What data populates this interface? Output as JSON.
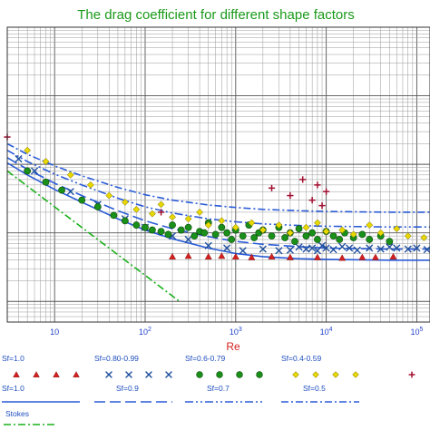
{
  "chart_data": {
    "type": "scatter",
    "title": "The drag coefficient for different shape factors",
    "xlabel": "Re",
    "ylabel": "",
    "x_scale": "log",
    "y_scale": "log",
    "xlim": [
      3,
      140000
    ],
    "ylim": [
      0.05,
      1000
    ],
    "grid": true,
    "x_tick_labels": [
      {
        "base": "10",
        "exp": "",
        "value": 10
      },
      {
        "base": "10",
        "exp": "2",
        "value": 100
      },
      {
        "base": "10",
        "exp": "3",
        "value": 1000
      },
      {
        "base": "10",
        "exp": "4",
        "value": 10000
      },
      {
        "base": "10",
        "exp": "5",
        "value": 100000
      }
    ],
    "legend": {
      "placement": "bottom",
      "marker_entries": [
        {
          "label": "Sf=1.0",
          "marker": "triangle",
          "color": "#d42020"
        },
        {
          "label": "Sf=0.80-0.99",
          "marker": "x",
          "color": "#1f4f9f"
        },
        {
          "label": "Sf=0.6-0.79",
          "marker": "circle",
          "color": "#1a8f1a"
        },
        {
          "label": "Sf=0.4-0.59",
          "marker": "diamond",
          "color": "#e8d800"
        },
        {
          "label": "",
          "marker": "plus",
          "color": "#a01030"
        }
      ],
      "line_entries": [
        {
          "label": "Sf=1.0",
          "style": "solid",
          "color": "#2a5bd7"
        },
        {
          "label": "Sf=0.9",
          "style": "long-dash",
          "color": "#2a5bd7"
        },
        {
          "label": "Sf=0.7",
          "style": "dash-dot-dot",
          "color": "#2a5bd7"
        },
        {
          "label": "Sf=0.5",
          "style": "dash-dot",
          "color": "#2a5bd7"
        }
      ],
      "stokes_entry": {
        "label": "Stokes",
        "style": "dash-dot",
        "color": "#1ab01a"
      }
    },
    "curves": [
      {
        "name": "Sf=1.0",
        "style": "solid",
        "color": "#2a5bd7",
        "x": [
          3,
          5,
          10,
          20,
          50,
          100,
          200,
          500,
          1000,
          2000,
          5000,
          10000,
          50000,
          140000
        ],
        "y": [
          10.5,
          7.0,
          4.3,
          2.8,
          1.6,
          1.1,
          0.82,
          0.6,
          0.5,
          0.45,
          0.42,
          0.41,
          0.4,
          0.4
        ]
      },
      {
        "name": "Sf=0.9",
        "style": "long-dash",
        "color": "#2a5bd7",
        "x": [
          3,
          5,
          10,
          20,
          50,
          100,
          200,
          500,
          1000,
          2000,
          5000,
          10000,
          50000,
          140000
        ],
        "y": [
          12.5,
          8.5,
          5.3,
          3.5,
          2.1,
          1.5,
          1.15,
          0.88,
          0.75,
          0.68,
          0.63,
          0.6,
          0.58,
          0.58
        ]
      },
      {
        "name": "Sf=0.7",
        "style": "dash-dot-dot",
        "color": "#2a5bd7",
        "x": [
          3,
          5,
          10,
          20,
          50,
          100,
          200,
          500,
          1000,
          2000,
          5000,
          10000,
          50000,
          140000
        ],
        "y": [
          16,
          11,
          7.2,
          5.0,
          3.2,
          2.4,
          1.95,
          1.6,
          1.45,
          1.35,
          1.28,
          1.25,
          1.22,
          1.22
        ]
      },
      {
        "name": "Sf=0.5",
        "style": "dash-dot",
        "color": "#2a5bd7",
        "x": [
          3,
          5,
          10,
          20,
          50,
          100,
          200,
          500,
          1000,
          2000,
          5000,
          10000,
          50000,
          140000
        ],
        "y": [
          20,
          14,
          9.5,
          6.8,
          4.6,
          3.6,
          3.0,
          2.55,
          2.35,
          2.2,
          2.1,
          2.05,
          2.0,
          2.0
        ]
      },
      {
        "name": "Stokes",
        "style": "dash-dot",
        "color": "#1ab01a",
        "x": [
          3,
          10,
          50,
          100,
          200,
          240
        ],
        "y": [
          8,
          2.4,
          0.48,
          0.24,
          0.12,
          0.1
        ]
      }
    ],
    "series": [
      {
        "name": "Sf=1.0",
        "marker": "triangle",
        "color": "#d42020",
        "x": [
          200,
          300,
          500,
          700,
          1000,
          1500,
          2500,
          4000,
          8000,
          15000,
          25000,
          35000,
          55000
        ],
        "y": [
          0.45,
          0.46,
          0.45,
          0.46,
          0.45,
          0.44,
          0.45,
          0.44,
          0.44,
          0.43,
          0.44,
          0.44,
          0.45
        ]
      },
      {
        "name": "Sf=0.80-0.99",
        "marker": "x",
        "color": "#1f4f9f",
        "x": [
          4,
          6,
          15,
          30,
          60,
          100,
          200,
          300,
          500,
          800,
          1200,
          2000,
          3000,
          4000,
          5000,
          6000,
          7000,
          8000,
          9000,
          10000,
          12000,
          15000,
          18000,
          22000,
          30000,
          40000,
          50000,
          60000,
          80000,
          100000,
          130000
        ],
        "y": [
          12,
          8,
          4,
          2.6,
          1.6,
          1.2,
          0.9,
          0.8,
          0.65,
          0.6,
          0.55,
          0.58,
          0.55,
          0.56,
          0.62,
          0.58,
          0.6,
          0.55,
          0.65,
          0.6,
          0.57,
          0.63,
          0.6,
          0.56,
          0.6,
          0.58,
          0.62,
          0.6,
          0.58,
          0.6,
          0.57
        ]
      },
      {
        "name": "Sf=0.6-0.79",
        "marker": "circle",
        "color": "#1a8f1a",
        "x": [
          5,
          8,
          12,
          20,
          30,
          45,
          60,
          80,
          100,
          120,
          150,
          180,
          200,
          250,
          300,
          350,
          400,
          450,
          500,
          600,
          700,
          800,
          900,
          1000,
          1200,
          1400,
          1600,
          1800,
          2000,
          2500,
          3000,
          3500,
          4000,
          4500,
          5000,
          6000,
          7000,
          8000,
          10000,
          12000,
          14000,
          16000,
          20000,
          25000,
          30000,
          40000,
          50000
        ],
        "y": [
          8,
          5.5,
          4.2,
          3.0,
          2.4,
          1.8,
          1.5,
          1.3,
          1.2,
          1.1,
          1.05,
          0.95,
          1.3,
          1.1,
          1.2,
          0.9,
          1.05,
          1.0,
          1.4,
          0.95,
          1.2,
          1.0,
          0.8,
          1.1,
          0.9,
          1.3,
          0.85,
          1.0,
          1.1,
          0.9,
          1.2,
          0.85,
          1.0,
          0.75,
          1.15,
          0.9,
          1.0,
          0.8,
          1.05,
          0.9,
          0.8,
          1.0,
          0.85,
          0.95,
          0.8,
          0.9,
          0.75
        ]
      },
      {
        "name": "Sf=0.4-0.59",
        "marker": "diamond",
        "color": "#e8d800",
        "x": [
          5,
          8,
          15,
          25,
          40,
          60,
          80,
          120,
          150,
          200,
          300,
          400,
          500,
          700,
          1000,
          1500,
          2000,
          3000,
          4000,
          6000,
          8000,
          10000,
          15000,
          20000,
          30000,
          40000,
          60000,
          80000,
          120000
        ],
        "y": [
          16,
          11,
          7,
          5,
          3.5,
          2.8,
          2.2,
          1.9,
          2.6,
          1.7,
          1.6,
          2.0,
          1.3,
          1.5,
          1.2,
          1.4,
          1.1,
          1.3,
          1.0,
          1.2,
          1.4,
          1.05,
          1.1,
          0.95,
          1.3,
          1.0,
          1.15,
          0.9,
          0.85
        ]
      },
      {
        "name": "",
        "marker": "plus",
        "color": "#a01030",
        "x": [
          3,
          150,
          2500,
          4000,
          5500,
          7000,
          8000,
          9000,
          10000
        ],
        "y": [
          25,
          2.0,
          4.5,
          3.5,
          6.0,
          3.0,
          5.0,
          2.5,
          4.0
        ]
      }
    ]
  }
}
